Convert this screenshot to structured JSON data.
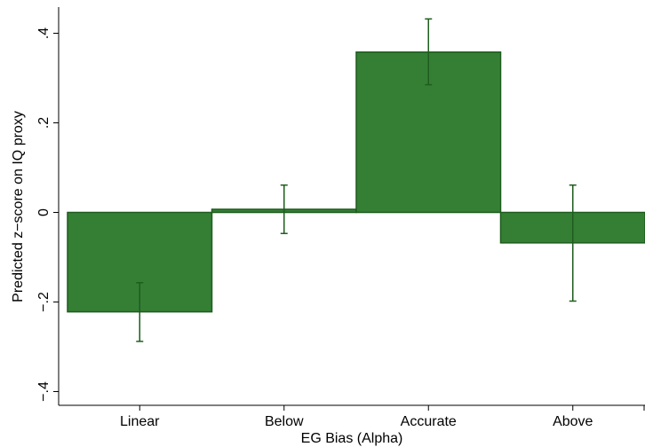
{
  "chart_data": {
    "type": "bar",
    "categories": [
      "Linear",
      "Below",
      "Accurate",
      "Above"
    ],
    "values": [
      -0.222,
      0.007,
      0.358,
      -0.068
    ],
    "error_low": [
      -0.288,
      -0.047,
      0.285,
      -0.198
    ],
    "error_high": [
      -0.157,
      0.061,
      0.432,
      0.061
    ],
    "xlabel": "EG Bias (Alpha)",
    "ylabel": "Predicted z−score on IQ proxy",
    "ylim": [
      -0.4,
      0.4
    ],
    "yticks": [
      -0.4,
      -0.2,
      0,
      0.2,
      0.4
    ],
    "ytick_labels": [
      "−.4",
      "−.2",
      "0",
      ".2",
      ".4"
    ],
    "grid": false,
    "colors": {
      "bar_fill": "#357f35",
      "bar_stroke": "#1e5c1e",
      "error_bar": "#1e5c1e"
    }
  }
}
